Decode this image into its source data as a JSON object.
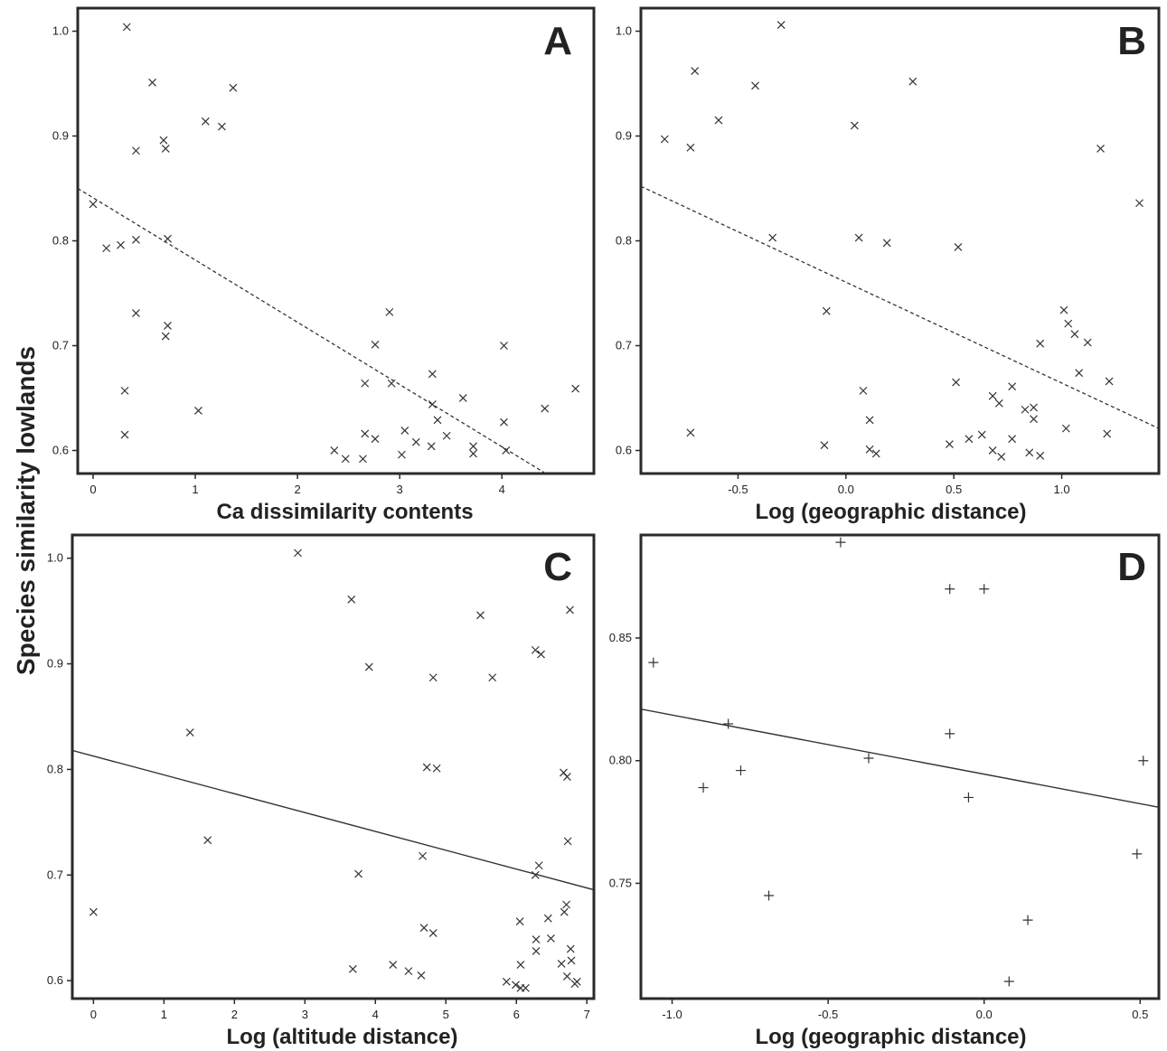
{
  "shared_ylabel": "Species similarity lowlands",
  "colors": {
    "frame": "#2a2a2a",
    "marker": "#333333",
    "text": "#222222"
  },
  "chart_data": [
    {
      "panel": "A",
      "type": "scatter",
      "marker": "x",
      "xlabel": "Ca dissimilarity contents",
      "xlim": [
        -0.15,
        4.9
      ],
      "ylim": [
        0.578,
        1.022
      ],
      "xticks": [
        0,
        1,
        2,
        3,
        4
      ],
      "yticks": [
        0.6,
        0.7,
        0.8,
        0.9,
        1.0
      ],
      "fit": {
        "style": "dashed",
        "x": [
          -0.15,
          4.43
        ],
        "y": [
          0.85,
          0.578
        ]
      },
      "points": [
        [
          0.33,
          1.004
        ],
        [
          0.58,
          0.951
        ],
        [
          1.37,
          0.946
        ],
        [
          1.1,
          0.914
        ],
        [
          1.26,
          0.909
        ],
        [
          0.69,
          0.896
        ],
        [
          0.42,
          0.886
        ],
        [
          0.71,
          0.888
        ],
        [
          0.0,
          0.835
        ],
        [
          0.13,
          0.793
        ],
        [
          0.27,
          0.796
        ],
        [
          0.42,
          0.801
        ],
        [
          0.73,
          0.802
        ],
        [
          0.42,
          0.731
        ],
        [
          0.73,
          0.719
        ],
        [
          0.71,
          0.709
        ],
        [
          0.31,
          0.657
        ],
        [
          0.31,
          0.615
        ],
        [
          1.03,
          0.638
        ],
        [
          2.9,
          0.732
        ],
        [
          2.76,
          0.701
        ],
        [
          2.66,
          0.664
        ],
        [
          2.92,
          0.664
        ],
        [
          3.32,
          0.673
        ],
        [
          3.32,
          0.644
        ],
        [
          3.37,
          0.629
        ],
        [
          3.62,
          0.65
        ],
        [
          4.02,
          0.7
        ],
        [
          4.02,
          0.627
        ],
        [
          4.42,
          0.64
        ],
        [
          4.72,
          0.659
        ],
        [
          2.36,
          0.6
        ],
        [
          2.47,
          0.592
        ],
        [
          2.64,
          0.592
        ],
        [
          2.66,
          0.616
        ],
        [
          2.76,
          0.611
        ],
        [
          3.02,
          0.596
        ],
        [
          3.05,
          0.619
        ],
        [
          3.16,
          0.608
        ],
        [
          3.31,
          0.604
        ],
        [
          3.46,
          0.614
        ],
        [
          3.72,
          0.604
        ],
        [
          3.72,
          0.597
        ],
        [
          4.04,
          0.6
        ]
      ]
    },
    {
      "panel": "B",
      "type": "scatter",
      "marker": "x",
      "xlabel": "Log (geographic distance)",
      "xlim": [
        -0.95,
        1.45
      ],
      "ylim": [
        0.578,
        1.022
      ],
      "xticks": [
        -0.5,
        0.0,
        0.5,
        1.0
      ],
      "xticklabels": [
        "-0.5",
        "0.0",
        "0.5",
        "1.0"
      ],
      "yticks": [
        0.6,
        0.7,
        0.8,
        0.9,
        1.0
      ],
      "fit": {
        "style": "dashed",
        "x": [
          -0.95,
          1.45
        ],
        "y": [
          0.852,
          0.621
        ]
      },
      "points": [
        [
          -0.3,
          1.006
        ],
        [
          -0.7,
          0.962
        ],
        [
          -0.42,
          0.948
        ],
        [
          0.31,
          0.952
        ],
        [
          -0.59,
          0.915
        ],
        [
          0.04,
          0.91
        ],
        [
          -0.84,
          0.897
        ],
        [
          -0.72,
          0.889
        ],
        [
          1.18,
          0.888
        ],
        [
          1.36,
          0.836
        ],
        [
          -0.34,
          0.803
        ],
        [
          0.06,
          0.803
        ],
        [
          0.19,
          0.798
        ],
        [
          0.52,
          0.794
        ],
        [
          -0.09,
          0.733
        ],
        [
          1.01,
          0.734
        ],
        [
          1.03,
          0.721
        ],
        [
          1.06,
          0.711
        ],
        [
          1.12,
          0.703
        ],
        [
          0.9,
          0.702
        ],
        [
          1.08,
          0.674
        ],
        [
          1.22,
          0.666
        ],
        [
          0.51,
          0.665
        ],
        [
          0.08,
          0.657
        ],
        [
          0.77,
          0.661
        ],
        [
          0.68,
          0.652
        ],
        [
          0.71,
          0.645
        ],
        [
          0.87,
          0.641
        ],
        [
          0.83,
          0.639
        ],
        [
          0.87,
          0.63
        ],
        [
          0.11,
          0.629
        ],
        [
          -0.72,
          0.617
        ],
        [
          1.21,
          0.616
        ],
        [
          1.02,
          0.621
        ],
        [
          0.63,
          0.615
        ],
        [
          0.57,
          0.611
        ],
        [
          0.77,
          0.611
        ],
        [
          -0.1,
          0.605
        ],
        [
          0.48,
          0.606
        ],
        [
          0.11,
          0.601
        ],
        [
          0.14,
          0.597
        ],
        [
          0.68,
          0.6
        ],
        [
          0.72,
          0.594
        ],
        [
          0.85,
          0.598
        ],
        [
          0.9,
          0.595
        ]
      ]
    },
    {
      "panel": "C",
      "type": "scatter",
      "marker": "x",
      "xlabel": "Log (altitude distance)",
      "xlim": [
        -0.3,
        7.1
      ],
      "ylim": [
        0.583,
        1.022
      ],
      "xticks": [
        0,
        1,
        2,
        3,
        4,
        5,
        6,
        7
      ],
      "yticks": [
        0.6,
        0.7,
        0.8,
        0.9,
        1.0
      ],
      "fit": {
        "style": "solid",
        "x": [
          -0.3,
          7.1
        ],
        "y": [
          0.818,
          0.686
        ]
      },
      "points": [
        [
          2.9,
          1.005
        ],
        [
          3.66,
          0.961
        ],
        [
          5.49,
          0.946
        ],
        [
          6.76,
          0.951
        ],
        [
          3.91,
          0.897
        ],
        [
          4.82,
          0.887
        ],
        [
          5.66,
          0.887
        ],
        [
          6.27,
          0.913
        ],
        [
          6.35,
          0.909
        ],
        [
          1.37,
          0.835
        ],
        [
          4.73,
          0.802
        ],
        [
          4.87,
          0.801
        ],
        [
          6.67,
          0.797
        ],
        [
          6.72,
          0.793
        ],
        [
          1.62,
          0.733
        ],
        [
          6.73,
          0.732
        ],
        [
          4.67,
          0.718
        ],
        [
          6.32,
          0.709
        ],
        [
          6.27,
          0.7
        ],
        [
          3.76,
          0.701
        ],
        [
          0.0,
          0.665
        ],
        [
          6.71,
          0.672
        ],
        [
          6.68,
          0.665
        ],
        [
          6.05,
          0.656
        ],
        [
          6.45,
          0.659
        ],
        [
          4.69,
          0.65
        ],
        [
          4.82,
          0.645
        ],
        [
          6.49,
          0.64
        ],
        [
          6.28,
          0.639
        ],
        [
          6.28,
          0.628
        ],
        [
          6.77,
          0.63
        ],
        [
          6.78,
          0.619
        ],
        [
          6.06,
          0.615
        ],
        [
          6.64,
          0.616
        ],
        [
          3.68,
          0.611
        ],
        [
          4.25,
          0.615
        ],
        [
          4.47,
          0.609
        ],
        [
          4.65,
          0.605
        ],
        [
          6.72,
          0.604
        ],
        [
          5.86,
          0.599
        ],
        [
          5.99,
          0.596
        ],
        [
          6.06,
          0.593
        ],
        [
          6.13,
          0.593
        ],
        [
          6.83,
          0.597
        ],
        [
          6.86,
          0.599
        ]
      ]
    },
    {
      "panel": "D",
      "type": "scatter",
      "marker": "+",
      "xlabel": "Log (geographic distance)",
      "xlim": [
        -1.1,
        0.56
      ],
      "ylim": [
        0.703,
        0.892
      ],
      "xticks": [
        -1.0,
        -0.5,
        0.0,
        0.5
      ],
      "xticklabels": [
        "-1.0",
        "-0.5",
        "0.0",
        "0.5"
      ],
      "yticks": [
        0.75,
        0.8,
        0.85
      ],
      "yticklabels": [
        "0.75",
        "0.80",
        "0.85"
      ],
      "fit": {
        "style": "solid",
        "x": [
          -1.1,
          0.56
        ],
        "y": [
          0.821,
          0.781
        ]
      },
      "points": [
        [
          -0.46,
          0.889
        ],
        [
          -0.11,
          0.87
        ],
        [
          0.0,
          0.87
        ],
        [
          -1.06,
          0.84
        ],
        [
          -0.82,
          0.815
        ],
        [
          -0.11,
          0.811
        ],
        [
          -0.37,
          0.801
        ],
        [
          0.51,
          0.8
        ],
        [
          -0.78,
          0.796
        ],
        [
          -0.9,
          0.789
        ],
        [
          -0.05,
          0.785
        ],
        [
          0.49,
          0.762
        ],
        [
          -0.69,
          0.745
        ],
        [
          0.14,
          0.735
        ],
        [
          0.08,
          0.71
        ]
      ]
    }
  ]
}
